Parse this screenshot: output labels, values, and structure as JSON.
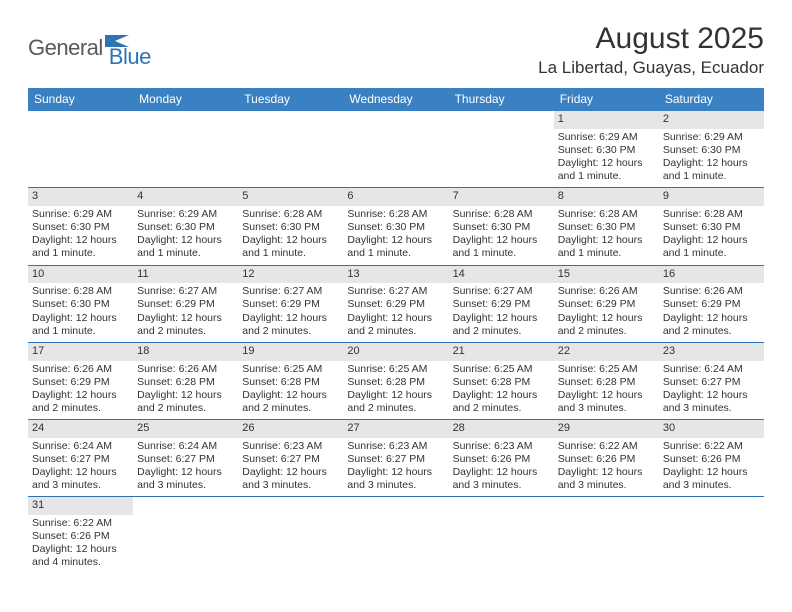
{
  "logo": {
    "part1": "General",
    "part2": "Blue"
  },
  "title": "August 2025",
  "location": "La Libertad, Guayas, Ecuador",
  "colors": {
    "header_bg": "#3a81c3",
    "header_text": "#ffffff",
    "rule": "#2e74b5",
    "daynum_bg": "#e6e6e6",
    "text": "#333333",
    "logo_gray": "#5a5a5a",
    "logo_blue": "#2e74b5"
  },
  "day_headers": [
    "Sunday",
    "Monday",
    "Tuesday",
    "Wednesday",
    "Thursday",
    "Friday",
    "Saturday"
  ],
  "weeks": [
    [
      {
        "empty": true
      },
      {
        "empty": true
      },
      {
        "empty": true
      },
      {
        "empty": true
      },
      {
        "empty": true
      },
      {
        "day": "1",
        "sunrise": "Sunrise: 6:29 AM",
        "sunset": "Sunset: 6:30 PM",
        "daylight1": "Daylight: 12 hours",
        "daylight2": "and 1 minute."
      },
      {
        "day": "2",
        "sunrise": "Sunrise: 6:29 AM",
        "sunset": "Sunset: 6:30 PM",
        "daylight1": "Daylight: 12 hours",
        "daylight2": "and 1 minute."
      }
    ],
    [
      {
        "day": "3",
        "sunrise": "Sunrise: 6:29 AM",
        "sunset": "Sunset: 6:30 PM",
        "daylight1": "Daylight: 12 hours",
        "daylight2": "and 1 minute."
      },
      {
        "day": "4",
        "sunrise": "Sunrise: 6:29 AM",
        "sunset": "Sunset: 6:30 PM",
        "daylight1": "Daylight: 12 hours",
        "daylight2": "and 1 minute."
      },
      {
        "day": "5",
        "sunrise": "Sunrise: 6:28 AM",
        "sunset": "Sunset: 6:30 PM",
        "daylight1": "Daylight: 12 hours",
        "daylight2": "and 1 minute."
      },
      {
        "day": "6",
        "sunrise": "Sunrise: 6:28 AM",
        "sunset": "Sunset: 6:30 PM",
        "daylight1": "Daylight: 12 hours",
        "daylight2": "and 1 minute."
      },
      {
        "day": "7",
        "sunrise": "Sunrise: 6:28 AM",
        "sunset": "Sunset: 6:30 PM",
        "daylight1": "Daylight: 12 hours",
        "daylight2": "and 1 minute."
      },
      {
        "day": "8",
        "sunrise": "Sunrise: 6:28 AM",
        "sunset": "Sunset: 6:30 PM",
        "daylight1": "Daylight: 12 hours",
        "daylight2": "and 1 minute."
      },
      {
        "day": "9",
        "sunrise": "Sunrise: 6:28 AM",
        "sunset": "Sunset: 6:30 PM",
        "daylight1": "Daylight: 12 hours",
        "daylight2": "and 1 minute."
      }
    ],
    [
      {
        "day": "10",
        "sunrise": "Sunrise: 6:28 AM",
        "sunset": "Sunset: 6:30 PM",
        "daylight1": "Daylight: 12 hours",
        "daylight2": "and 1 minute."
      },
      {
        "day": "11",
        "sunrise": "Sunrise: 6:27 AM",
        "sunset": "Sunset: 6:29 PM",
        "daylight1": "Daylight: 12 hours",
        "daylight2": "and 2 minutes."
      },
      {
        "day": "12",
        "sunrise": "Sunrise: 6:27 AM",
        "sunset": "Sunset: 6:29 PM",
        "daylight1": "Daylight: 12 hours",
        "daylight2": "and 2 minutes."
      },
      {
        "day": "13",
        "sunrise": "Sunrise: 6:27 AM",
        "sunset": "Sunset: 6:29 PM",
        "daylight1": "Daylight: 12 hours",
        "daylight2": "and 2 minutes."
      },
      {
        "day": "14",
        "sunrise": "Sunrise: 6:27 AM",
        "sunset": "Sunset: 6:29 PM",
        "daylight1": "Daylight: 12 hours",
        "daylight2": "and 2 minutes."
      },
      {
        "day": "15",
        "sunrise": "Sunrise: 6:26 AM",
        "sunset": "Sunset: 6:29 PM",
        "daylight1": "Daylight: 12 hours",
        "daylight2": "and 2 minutes."
      },
      {
        "day": "16",
        "sunrise": "Sunrise: 6:26 AM",
        "sunset": "Sunset: 6:29 PM",
        "daylight1": "Daylight: 12 hours",
        "daylight2": "and 2 minutes."
      }
    ],
    [
      {
        "day": "17",
        "sunrise": "Sunrise: 6:26 AM",
        "sunset": "Sunset: 6:29 PM",
        "daylight1": "Daylight: 12 hours",
        "daylight2": "and 2 minutes."
      },
      {
        "day": "18",
        "sunrise": "Sunrise: 6:26 AM",
        "sunset": "Sunset: 6:28 PM",
        "daylight1": "Daylight: 12 hours",
        "daylight2": "and 2 minutes."
      },
      {
        "day": "19",
        "sunrise": "Sunrise: 6:25 AM",
        "sunset": "Sunset: 6:28 PM",
        "daylight1": "Daylight: 12 hours",
        "daylight2": "and 2 minutes."
      },
      {
        "day": "20",
        "sunrise": "Sunrise: 6:25 AM",
        "sunset": "Sunset: 6:28 PM",
        "daylight1": "Daylight: 12 hours",
        "daylight2": "and 2 minutes."
      },
      {
        "day": "21",
        "sunrise": "Sunrise: 6:25 AM",
        "sunset": "Sunset: 6:28 PM",
        "daylight1": "Daylight: 12 hours",
        "daylight2": "and 2 minutes."
      },
      {
        "day": "22",
        "sunrise": "Sunrise: 6:25 AM",
        "sunset": "Sunset: 6:28 PM",
        "daylight1": "Daylight: 12 hours",
        "daylight2": "and 3 minutes."
      },
      {
        "day": "23",
        "sunrise": "Sunrise: 6:24 AM",
        "sunset": "Sunset: 6:27 PM",
        "daylight1": "Daylight: 12 hours",
        "daylight2": "and 3 minutes."
      }
    ],
    [
      {
        "day": "24",
        "sunrise": "Sunrise: 6:24 AM",
        "sunset": "Sunset: 6:27 PM",
        "daylight1": "Daylight: 12 hours",
        "daylight2": "and 3 minutes."
      },
      {
        "day": "25",
        "sunrise": "Sunrise: 6:24 AM",
        "sunset": "Sunset: 6:27 PM",
        "daylight1": "Daylight: 12 hours",
        "daylight2": "and 3 minutes."
      },
      {
        "day": "26",
        "sunrise": "Sunrise: 6:23 AM",
        "sunset": "Sunset: 6:27 PM",
        "daylight1": "Daylight: 12 hours",
        "daylight2": "and 3 minutes."
      },
      {
        "day": "27",
        "sunrise": "Sunrise: 6:23 AM",
        "sunset": "Sunset: 6:27 PM",
        "daylight1": "Daylight: 12 hours",
        "daylight2": "and 3 minutes."
      },
      {
        "day": "28",
        "sunrise": "Sunrise: 6:23 AM",
        "sunset": "Sunset: 6:26 PM",
        "daylight1": "Daylight: 12 hours",
        "daylight2": "and 3 minutes."
      },
      {
        "day": "29",
        "sunrise": "Sunrise: 6:22 AM",
        "sunset": "Sunset: 6:26 PM",
        "daylight1": "Daylight: 12 hours",
        "daylight2": "and 3 minutes."
      },
      {
        "day": "30",
        "sunrise": "Sunrise: 6:22 AM",
        "sunset": "Sunset: 6:26 PM",
        "daylight1": "Daylight: 12 hours",
        "daylight2": "and 3 minutes."
      }
    ],
    [
      {
        "day": "31",
        "sunrise": "Sunrise: 6:22 AM",
        "sunset": "Sunset: 6:26 PM",
        "daylight1": "Daylight: 12 hours",
        "daylight2": "and 4 minutes."
      },
      {
        "empty": true
      },
      {
        "empty": true
      },
      {
        "empty": true
      },
      {
        "empty": true
      },
      {
        "empty": true
      },
      {
        "empty": true
      }
    ]
  ]
}
